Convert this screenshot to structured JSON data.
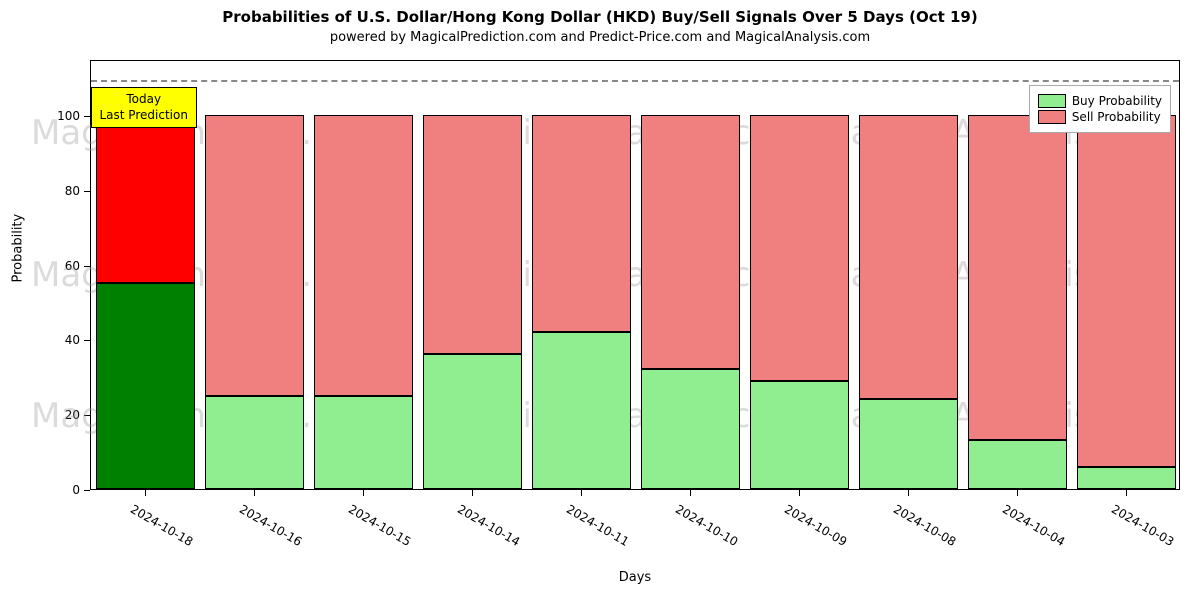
{
  "chart": {
    "type": "stacked-bar",
    "title": "Probabilities of U.S. Dollar/Hong Kong Dollar (HKD) Buy/Sell Signals Over 5 Days (Oct 19)",
    "title_fontsize": 15,
    "subtitle": "powered by MagicalPrediction.com and Predict-Price.com and MagicalAnalysis.com",
    "subtitle_fontsize": 13,
    "xlabel": "Days",
    "ylabel": "Probability",
    "label_fontsize": 13,
    "tick_fontsize": 12,
    "background_color": "#ffffff",
    "axis_color": "#000000",
    "ylim": [
      0,
      115
    ],
    "yticks": [
      0,
      20,
      40,
      60,
      80,
      100
    ],
    "bar_width": 0.9,
    "bar_border": "#000000",
    "dashed_line_y": 110,
    "dashed_color": "#888888",
    "annotation": {
      "line1": "Today",
      "line2": "Last Prediction",
      "bg": "#ffff00",
      "border": "#000000",
      "x_index": 0
    },
    "legend": {
      "position": "top-right",
      "items": [
        {
          "label": "Buy Probability",
          "color": "#90ee90"
        },
        {
          "label": "Sell Probability",
          "color": "#f08080"
        }
      ]
    },
    "watermarks": [
      {
        "text": "MagicalAnalysis.com",
        "row": 0,
        "col": 0
      },
      {
        "text": "MagicalAnalysis.com",
        "row": 0,
        "col": 1
      },
      {
        "text": "MagicalAnalysis.com",
        "row": 0,
        "col": 2
      },
      {
        "text": "MagicalAnalysis.com",
        "row": 1,
        "col": 0
      },
      {
        "text": "MagicalAnalysis.com",
        "row": 1,
        "col": 1
      },
      {
        "text": "MagicalAnalysis.com",
        "row": 1,
        "col": 2
      },
      {
        "text": "MagicalAnalysis.com",
        "row": 2,
        "col": 0
      },
      {
        "text": "MagicalAnalysis.com",
        "row": 2,
        "col": 1
      },
      {
        "text": "MagicalAnalysis.com",
        "row": 2,
        "col": 2
      }
    ],
    "watermark_color": "#999999",
    "watermark_fontsize": 34,
    "categories": [
      "2024-10-18",
      "2024-10-16",
      "2024-10-15",
      "2024-10-14",
      "2024-10-11",
      "2024-10-10",
      "2024-10-09",
      "2024-10-08",
      "2024-10-04",
      "2024-10-03"
    ],
    "data": [
      {
        "buy": 55,
        "sell": 45,
        "buy_color": "#008000",
        "sell_color": "#ff0000"
      },
      {
        "buy": 25,
        "sell": 75,
        "buy_color": "#90ee90",
        "sell_color": "#f08080"
      },
      {
        "buy": 25,
        "sell": 75,
        "buy_color": "#90ee90",
        "sell_color": "#f08080"
      },
      {
        "buy": 36,
        "sell": 64,
        "buy_color": "#90ee90",
        "sell_color": "#f08080"
      },
      {
        "buy": 42,
        "sell": 58,
        "buy_color": "#90ee90",
        "sell_color": "#f08080"
      },
      {
        "buy": 32,
        "sell": 68,
        "buy_color": "#90ee90",
        "sell_color": "#f08080"
      },
      {
        "buy": 29,
        "sell": 71,
        "buy_color": "#90ee90",
        "sell_color": "#f08080"
      },
      {
        "buy": 24,
        "sell": 76,
        "buy_color": "#90ee90",
        "sell_color": "#f08080"
      },
      {
        "buy": 13,
        "sell": 87,
        "buy_color": "#90ee90",
        "sell_color": "#f08080"
      },
      {
        "buy": 6,
        "sell": 94,
        "buy_color": "#90ee90",
        "sell_color": "#f08080"
      }
    ]
  }
}
